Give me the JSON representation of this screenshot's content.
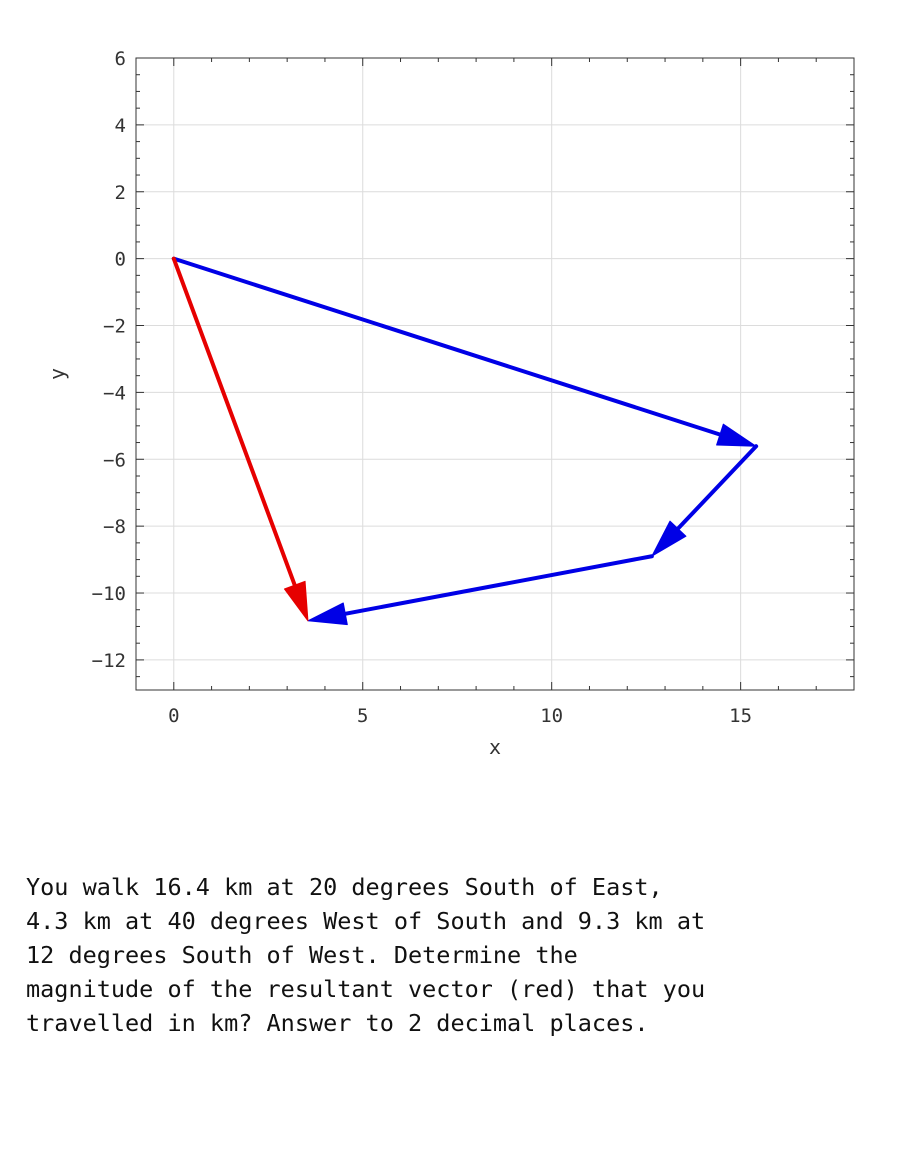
{
  "chart_data": {
    "type": "vector-diagram",
    "title": "",
    "xlabel": "x",
    "ylabel": "y",
    "xlim": [
      -1,
      18
    ],
    "ylim": [
      -12.9,
      6
    ],
    "xticks": [
      0,
      5,
      10,
      15
    ],
    "yticks": [
      6,
      4,
      2,
      0,
      -2,
      -4,
      -6,
      -8,
      -10,
      -12
    ],
    "xticklabels": [
      "0",
      "5",
      "10",
      "15"
    ],
    "yticklabels": [
      "6",
      "4",
      "2",
      "0",
      "−2",
      "−4",
      "−6",
      "−8",
      "−10",
      "−12"
    ],
    "grid": true,
    "vectors": [
      {
        "from": [
          0,
          0
        ],
        "to": [
          15.41,
          -5.61
        ],
        "color": "#0000e6"
      },
      {
        "from": [
          15.41,
          -5.61
        ],
        "to": [
          12.65,
          -8.9
        ],
        "color": "#0000e6"
      },
      {
        "from": [
          12.65,
          -8.9
        ],
        "to": [
          3.55,
          -10.83
        ],
        "color": "#0000e6"
      },
      {
        "from": [
          0,
          0
        ],
        "to": [
          3.55,
          -10.83
        ],
        "color": "#e60000"
      }
    ]
  },
  "question": {
    "text": "You walk 16.4 km at 20 degrees South of East,\n4.3 km at 40 degrees West of South and 9.3 km at\n12 degrees South of West.  Determine the\nmagnitude of the resultant vector (red) that you\ntravelled in km? Answer to 2 decimal places."
  }
}
